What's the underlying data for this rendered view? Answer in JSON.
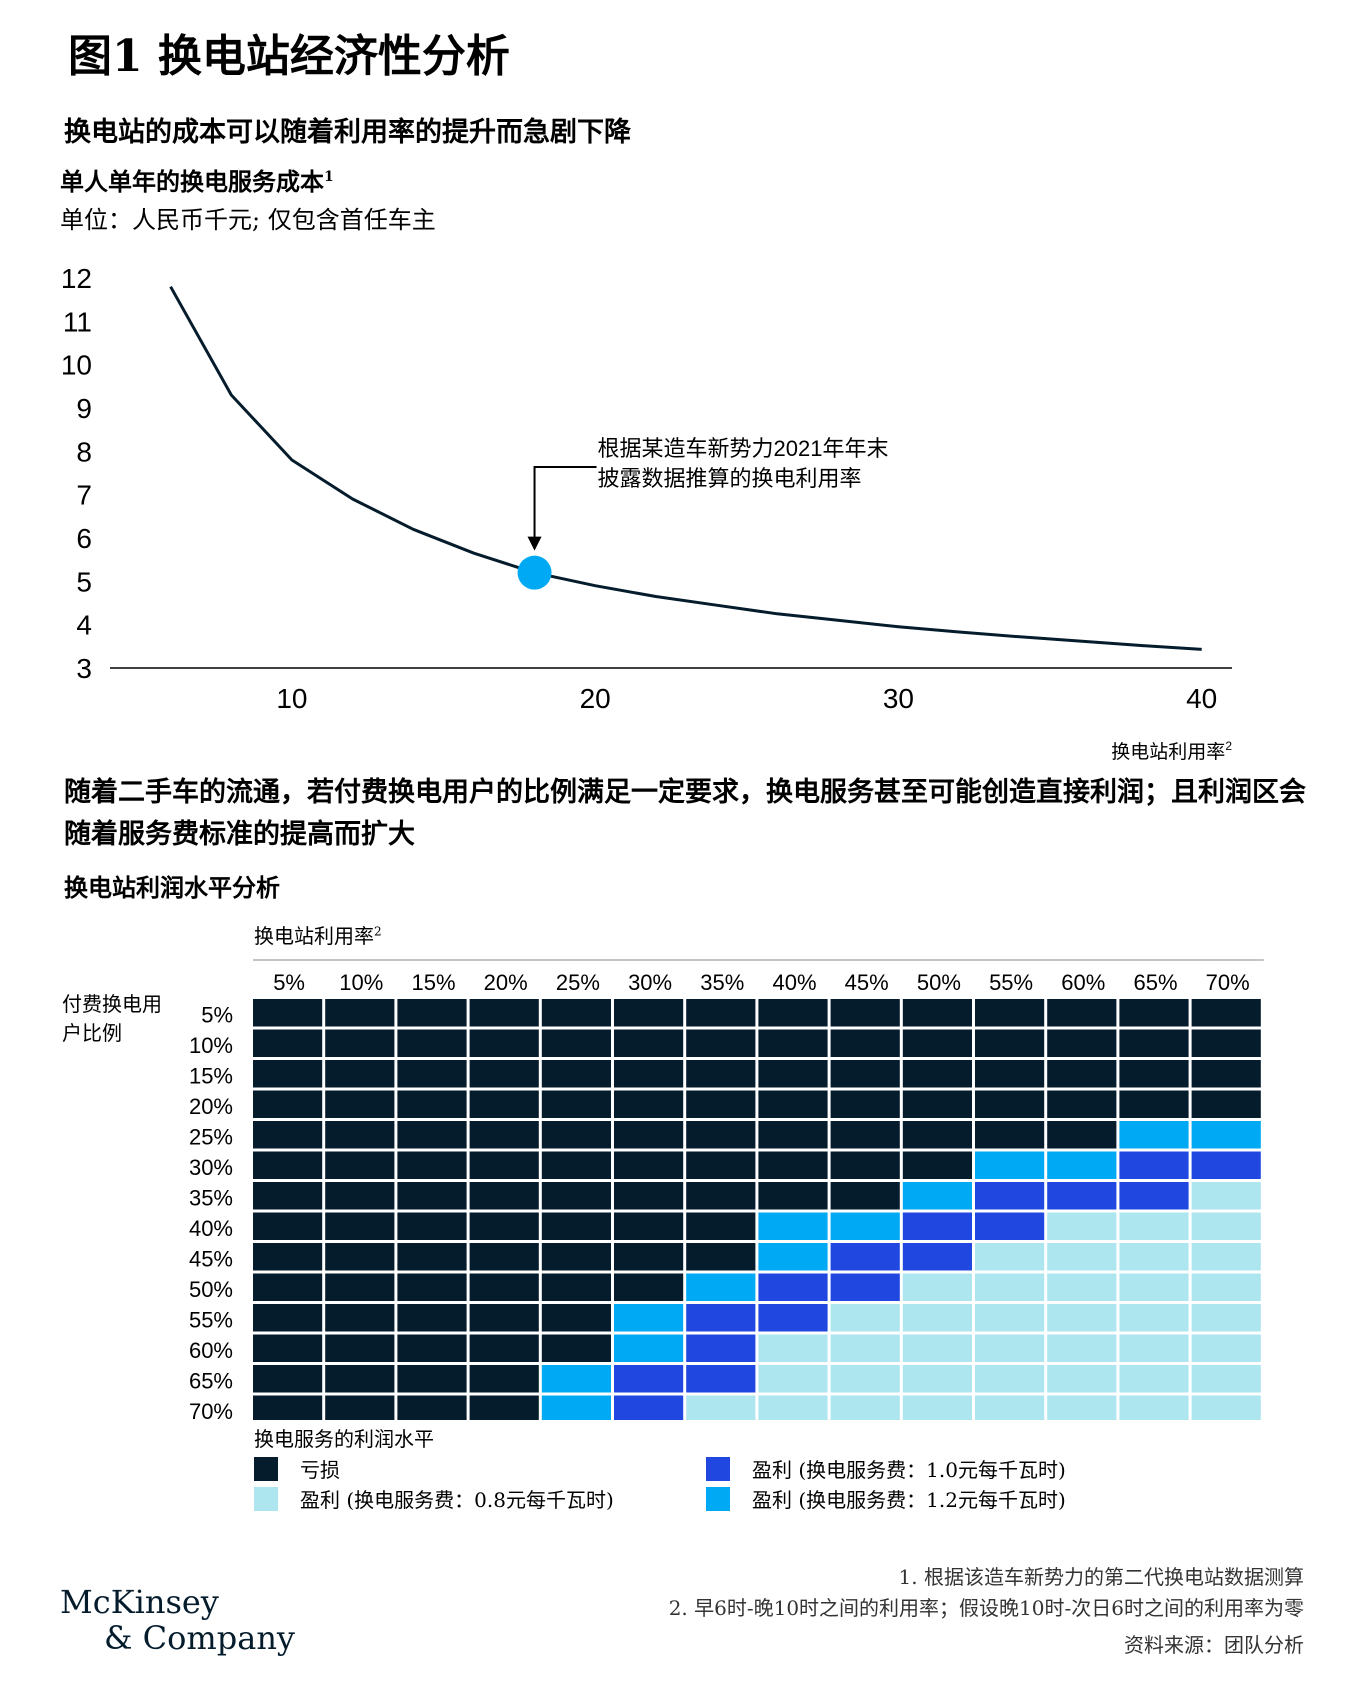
{
  "title": "图1 换电站经济性分析",
  "section1": {
    "heading": "换电站的成本可以随着利用率的提升而急剧下降",
    "chart_title": "单人单年的换电服务成本",
    "chart_title_note": "1",
    "unit": "单位：人民币千元; 仅包含首任车主"
  },
  "section2": {
    "heading": "随着二手车的流通，若付费换电用户的比例满足一定要求，换电服务甚至可能创造直接利润；且利润区会随着服务费标准的提高而扩大",
    "chart_title": "换电站利润水平分析"
  },
  "colors": {
    "loss": "#051c2c",
    "profit_08": "#aee6f0",
    "profit_10": "#2048e0",
    "profit_12": "#00a9f4",
    "line": "#051c2c",
    "marker": "#00a9f4"
  },
  "chart_data": [
    {
      "type": "line",
      "title": "单人单年的换电服务成本",
      "ylabel": "单位：人民币千元; 仅包含首任车主",
      "xlabel": "换电站利用率",
      "xlabel_note": "2",
      "x": [
        6,
        8,
        10,
        12,
        14,
        16,
        18,
        20,
        22,
        24,
        26,
        28,
        30,
        32,
        34,
        36,
        38,
        40
      ],
      "y": [
        11.8,
        9.3,
        7.8,
        6.9,
        6.2,
        5.65,
        5.2,
        4.9,
        4.65,
        4.45,
        4.25,
        4.1,
        3.95,
        3.83,
        3.72,
        3.62,
        3.52,
        3.43
      ],
      "xlim": [
        4,
        41
      ],
      "ylim": [
        3,
        12
      ],
      "xticks": [
        10,
        20,
        30,
        40
      ],
      "yticks": [
        3,
        4,
        5,
        6,
        7,
        8,
        9,
        10,
        11,
        12
      ],
      "grid": false,
      "highlight": {
        "x": 18,
        "y": 5.2
      },
      "annotation": [
        "根据某造车新势力2021年年末",
        "披露数据推算的换电利用率"
      ]
    },
    {
      "type": "heatmap",
      "title": "换电站利润水平分析",
      "col_axis_label": "换电站利用率",
      "col_axis_note": "2",
      "row_axis_label": "付费换电用户比例",
      "columns": [
        "5%",
        "10%",
        "15%",
        "20%",
        "25%",
        "30%",
        "35%",
        "40%",
        "45%",
        "50%",
        "55%",
        "60%",
        "65%",
        "70%"
      ],
      "rows": [
        "5%",
        "10%",
        "15%",
        "20%",
        "25%",
        "30%",
        "35%",
        "40%",
        "45%",
        "50%",
        "55%",
        "60%",
        "65%",
        "70%"
      ],
      "cells": [
        [
          0,
          0,
          0,
          0,
          0,
          0,
          0,
          0,
          0,
          0,
          0,
          0,
          0,
          0
        ],
        [
          0,
          0,
          0,
          0,
          0,
          0,
          0,
          0,
          0,
          0,
          0,
          0,
          0,
          0
        ],
        [
          0,
          0,
          0,
          0,
          0,
          0,
          0,
          0,
          0,
          0,
          0,
          0,
          0,
          0
        ],
        [
          0,
          0,
          0,
          0,
          0,
          0,
          0,
          0,
          0,
          0,
          0,
          0,
          0,
          0
        ],
        [
          0,
          0,
          0,
          0,
          0,
          0,
          0,
          0,
          0,
          0,
          0,
          0,
          3,
          3
        ],
        [
          0,
          0,
          0,
          0,
          0,
          0,
          0,
          0,
          0,
          0,
          3,
          3,
          2,
          2
        ],
        [
          0,
          0,
          0,
          0,
          0,
          0,
          0,
          0,
          0,
          3,
          2,
          2,
          2,
          1
        ],
        [
          0,
          0,
          0,
          0,
          0,
          0,
          0,
          3,
          3,
          2,
          2,
          1,
          1,
          1
        ],
        [
          0,
          0,
          0,
          0,
          0,
          0,
          0,
          3,
          2,
          2,
          1,
          1,
          1,
          1
        ],
        [
          0,
          0,
          0,
          0,
          0,
          0,
          3,
          2,
          2,
          1,
          1,
          1,
          1,
          1
        ],
        [
          0,
          0,
          0,
          0,
          0,
          3,
          2,
          2,
          1,
          1,
          1,
          1,
          1,
          1
        ],
        [
          0,
          0,
          0,
          0,
          0,
          3,
          2,
          1,
          1,
          1,
          1,
          1,
          1,
          1
        ],
        [
          0,
          0,
          0,
          0,
          3,
          2,
          2,
          1,
          1,
          1,
          1,
          1,
          1,
          1
        ],
        [
          0,
          0,
          0,
          0,
          3,
          2,
          1,
          1,
          1,
          1,
          1,
          1,
          1,
          1
        ]
      ],
      "legend_title": "换电服务的利润水平",
      "legend": [
        {
          "level": 0,
          "label": "亏损"
        },
        {
          "level": 2,
          "label": "盈利 (换电服务费：1.0元每千瓦时)"
        },
        {
          "level": 1,
          "label": "盈利 (换电服务费：0.8元每千瓦时)"
        },
        {
          "level": 3,
          "label": "盈利 (换电服务费：1.2元每千瓦时)"
        }
      ]
    }
  ],
  "footnotes": [
    "1. 根据该造车新势力的第二代换电站数据测算",
    "2. 早6时-晚10时之间的利用率；假设晚10时-次日6时之间的利用率为零"
  ],
  "source": "资料来源：团队分析",
  "logo": {
    "line1": "McKinsey",
    "line2": "& Company"
  }
}
